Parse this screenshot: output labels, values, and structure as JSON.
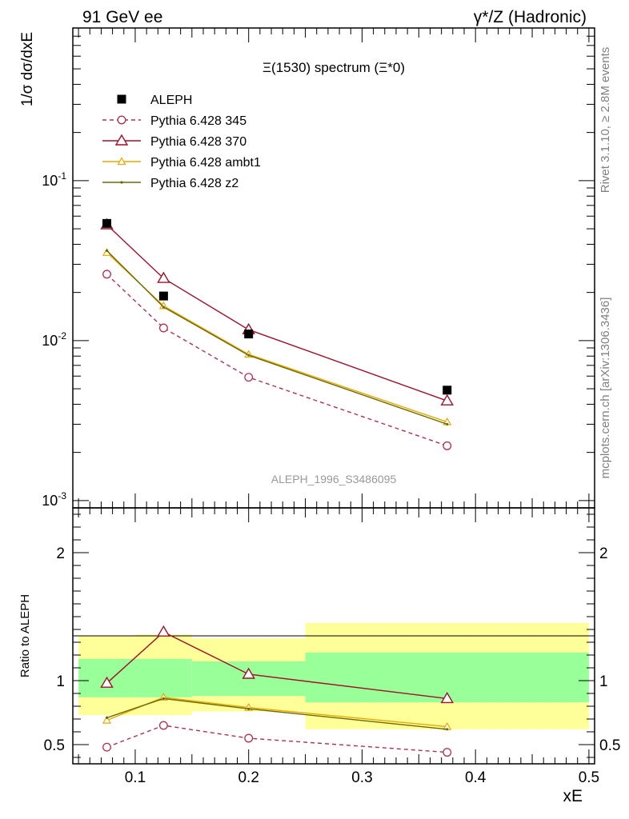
{
  "header": {
    "left": "91 GeV ee",
    "right": "γ*/Z (Hadronic)"
  },
  "side_labels": {
    "rivet": "Rivet 3.1.10, ≥ 2.8M events",
    "mcplots": "mcplots.cern.ch [arXiv:1306.3436]"
  },
  "chart_data": [
    {
      "type": "line",
      "title": "Ξ(1530) spectrum (Ξ*0)",
      "ylabel": "1/σ dσ/dxE",
      "xlabel": "xE",
      "yscale": "log",
      "xlim": [
        0.045,
        0.505
      ],
      "ylim": [
        0.0009,
        0.9
      ],
      "ytick_labels": [
        "10^-1",
        "10^-2",
        "10^-3"
      ],
      "watermark": "ALEPH_1996_S3486095",
      "legend_position": "top-left",
      "series": [
        {
          "name": "ALEPH",
          "color": "#000000",
          "style": "data",
          "x": [
            0.075,
            0.125,
            0.2,
            0.375
          ],
          "y": [
            0.054,
            0.019,
            0.011,
            0.0049
          ]
        },
        {
          "name": "Pythia 6.428 345",
          "color": "#b03050",
          "style": "dashed-circle",
          "x": [
            0.075,
            0.125,
            0.2,
            0.375
          ],
          "y": [
            0.026,
            0.012,
            0.0059,
            0.0022
          ]
        },
        {
          "name": "Pythia 6.428 370",
          "color": "#a01028",
          "style": "solid-triangle",
          "x": [
            0.075,
            0.125,
            0.2,
            0.375
          ],
          "y": [
            0.053,
            0.0245,
            0.0117,
            0.0042
          ]
        },
        {
          "name": "Pythia 6.428 ambt1",
          "color": "#e8a800",
          "style": "solid-smalltriangle",
          "x": [
            0.075,
            0.125,
            0.2,
            0.375
          ],
          "y": [
            0.0355,
            0.0165,
            0.0082,
            0.0031
          ]
        },
        {
          "name": "Pythia 6.428 z2",
          "color": "#6b6b00",
          "style": "solid-dot",
          "x": [
            0.075,
            0.125,
            0.2,
            0.375
          ],
          "y": [
            0.0365,
            0.0162,
            0.0081,
            0.003
          ]
        }
      ]
    },
    {
      "type": "line",
      "ylabel": "Ratio to ALEPH",
      "xlabel": "xE",
      "xlim": [
        0.045,
        0.505
      ],
      "ylim": [
        0.35,
        2.35
      ],
      "yticks": [
        0.5,
        1,
        2
      ],
      "ytick_labels": [
        "0.5",
        "1",
        "2"
      ],
      "xticks": [
        0.1,
        0.2,
        0.3,
        0.4,
        0.5
      ],
      "xtick_labels": [
        "0.1",
        "0.2",
        "0.3",
        "0.4",
        "0.5"
      ],
      "bands": [
        {
          "x0": 0.05,
          "x1": 0.1,
          "stat": [
            0.87,
            1.17
          ],
          "total": [
            0.73,
            1.35
          ]
        },
        {
          "x0": 0.1,
          "x1": 0.15,
          "stat": [
            0.87,
            1.17
          ],
          "total": [
            0.73,
            1.36
          ]
        },
        {
          "x0": 0.15,
          "x1": 0.25,
          "stat": [
            0.88,
            1.15
          ],
          "total": [
            0.76,
            1.33
          ]
        },
        {
          "x0": 0.25,
          "x1": 0.5,
          "stat": [
            0.83,
            1.22
          ],
          "total": [
            0.62,
            1.45
          ]
        }
      ],
      "series": [
        {
          "name": "Pythia 6.428 345",
          "x": [
            0.075,
            0.125,
            0.2,
            0.375
          ],
          "y": [
            0.48,
            0.65,
            0.55,
            0.44
          ]
        },
        {
          "name": "Pythia 6.428 370",
          "x": [
            0.075,
            0.125,
            0.2,
            0.375
          ],
          "y": [
            0.98,
            1.38,
            1.05,
            0.86
          ]
        },
        {
          "name": "Pythia 6.428 ambt1",
          "x": [
            0.075,
            0.125,
            0.2,
            0.375
          ],
          "y": [
            0.69,
            0.87,
            0.79,
            0.64
          ]
        },
        {
          "name": "Pythia 6.428 z2",
          "x": [
            0.075,
            0.125,
            0.2,
            0.375
          ],
          "y": [
            0.71,
            0.86,
            0.78,
            0.62
          ]
        }
      ]
    }
  ]
}
